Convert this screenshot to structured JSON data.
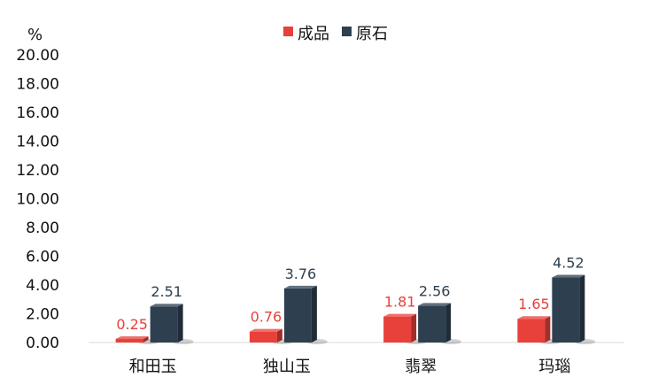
{
  "chart_data": {
    "type": "bar",
    "unit": "%",
    "categories": [
      "和田玉",
      "独山玉",
      "翡翠",
      "玛瑙"
    ],
    "series": [
      {
        "name": "成品",
        "color": "#e8403a",
        "values": [
          0.25,
          0.76,
          1.81,
          1.65
        ]
      },
      {
        "name": "原石",
        "color": "#2e4050",
        "values": [
          2.51,
          3.76,
          2.56,
          4.52
        ]
      }
    ],
    "yticks": [
      "0.00",
      "2.00",
      "4.00",
      "6.00",
      "8.00",
      "10.00",
      "12.00",
      "14.00",
      "16.00",
      "18.00",
      "20.00"
    ],
    "ylim": [
      0,
      20
    ],
    "legend_position": "top-center",
    "grid": false,
    "style": "3d-column"
  }
}
